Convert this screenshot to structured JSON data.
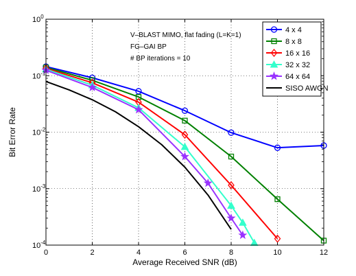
{
  "chart_data": {
    "type": "line",
    "title": "",
    "xlabel": "Average Received SNR (dB)",
    "ylabel": "Bit Error Rate",
    "xlim": [
      0,
      12
    ],
    "ylim": [
      0.0001,
      1
    ],
    "yscale": "log",
    "grid": true,
    "legend_position": "top-right",
    "x_ticks": [
      "0",
      "2",
      "4",
      "6",
      "8",
      "10",
      "12"
    ],
    "y_ticks": [
      {
        "base": "10",
        "exp": "0"
      },
      {
        "base": "10",
        "exp": "-1"
      },
      {
        "base": "10",
        "exp": "-2"
      },
      {
        "base": "10",
        "exp": "-3"
      },
      {
        "base": "10",
        "exp": "-4"
      }
    ],
    "annotations": [
      "V–BLAST MIMO, flat fading (L=K=1)",
      "FG–GAI BP",
      "# BP iterations = 10"
    ],
    "series": [
      {
        "name": "4 x 4",
        "color": "#0000ff",
        "marker": "circle",
        "x": [
          0,
          2,
          4,
          6,
          8,
          10,
          12
        ],
        "y": [
          0.145,
          0.092,
          0.053,
          0.024,
          0.0098,
          0.0053,
          0.0058
        ]
      },
      {
        "name": "8 x 8",
        "color": "#008000",
        "marker": "square",
        "x": [
          0,
          2,
          4,
          6,
          8,
          10,
          12
        ],
        "y": [
          0.14,
          0.083,
          0.042,
          0.016,
          0.0037,
          0.00065,
          0.00012
        ]
      },
      {
        "name": "16 x 16",
        "color": "#ff0000",
        "marker": "diamond",
        "x": [
          0,
          2,
          4,
          6,
          8,
          10
        ],
        "y": [
          0.135,
          0.075,
          0.034,
          0.009,
          0.00115,
          0.00013
        ]
      },
      {
        "name": "32 x 32",
        "color": "#33ffcc",
        "marker": "triangle",
        "x": [
          0,
          2,
          4,
          6,
          8,
          8.5,
          9
        ],
        "y": [
          0.13,
          0.068,
          0.027,
          0.0055,
          0.0005,
          0.00025,
          0.00011
        ]
      },
      {
        "name": "64 x 64",
        "color": "#9933ff",
        "marker": "star",
        "x": [
          0,
          2,
          4,
          6,
          7,
          8,
          8.5
        ],
        "y": [
          0.125,
          0.062,
          0.025,
          0.0037,
          0.00125,
          0.0003,
          0.00015
        ]
      },
      {
        "name": "SISO AWGN",
        "color": "#000000",
        "marker": "none",
        "x": [
          0,
          1,
          2,
          3,
          4,
          5,
          6,
          7,
          8
        ],
        "y": [
          0.079,
          0.056,
          0.0375,
          0.023,
          0.0125,
          0.006,
          0.0024,
          0.00077,
          0.00019
        ]
      }
    ]
  }
}
